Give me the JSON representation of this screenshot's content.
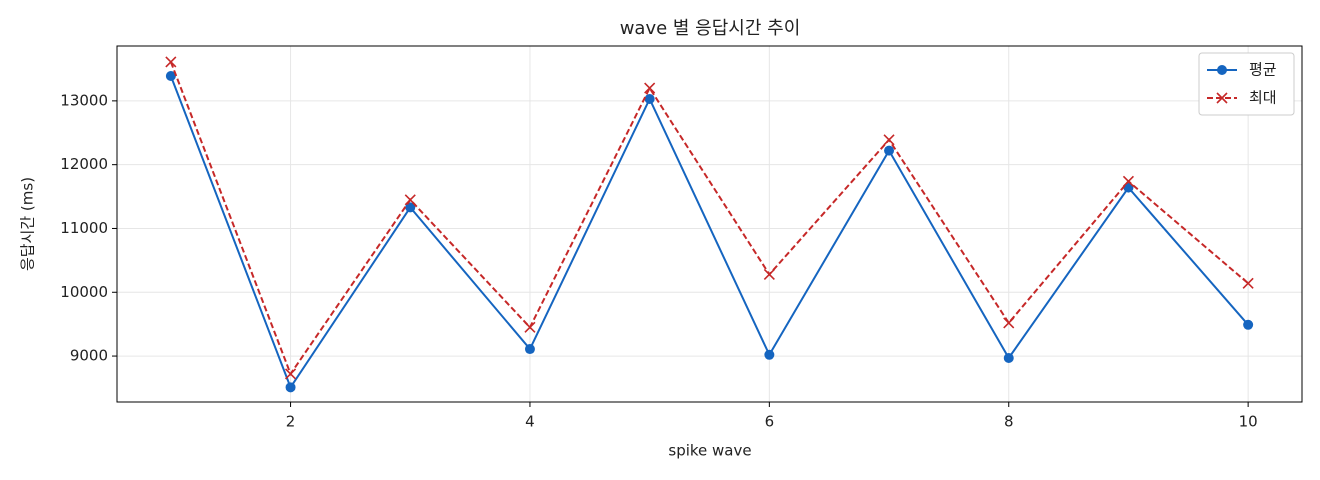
{
  "chart_data": {
    "type": "line",
    "title": "wave 별 응답시간 추이",
    "xlabel": "spike wave",
    "ylabel": "응답시간 (ms)",
    "x": [
      1,
      2,
      3,
      4,
      5,
      6,
      7,
      8,
      9,
      10
    ],
    "series": [
      {
        "name": "평균",
        "color": "#1565c0",
        "marker": "o",
        "linestyle": "solid",
        "values": [
          13390,
          8510,
          11330,
          9110,
          13030,
          9020,
          12220,
          8970,
          11640,
          9490
        ]
      },
      {
        "name": "최대",
        "color": "#c62828",
        "marker": "x",
        "linestyle": "dashed",
        "values": [
          13610,
          8720,
          11450,
          9450,
          13200,
          10280,
          12390,
          9520,
          11740,
          10140
        ]
      }
    ],
    "xlim": [
      0.55,
      10.45
    ],
    "xticks": [
      2,
      4,
      6,
      8,
      10
    ],
    "ylim": [
      8280,
      13860
    ],
    "yticks": [
      9000,
      10000,
      11000,
      12000,
      13000
    ],
    "grid": true,
    "legend": "upper right"
  }
}
